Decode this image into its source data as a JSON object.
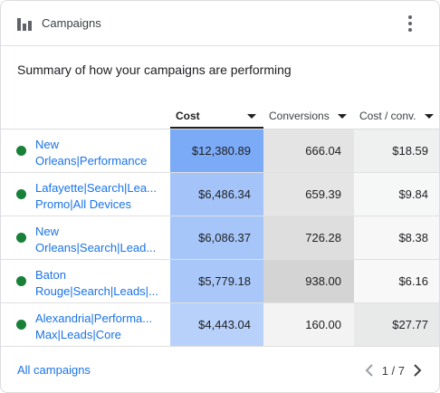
{
  "header": {
    "title": "Campaigns",
    "chart_icon": "bar-chart-icon",
    "menu_icon": "more-vert-icon"
  },
  "subtitle": "Summary of how your campaigns are performing",
  "columns": [
    {
      "label": "Cost",
      "sorted": true
    },
    {
      "label": "Conversions",
      "sorted": false
    },
    {
      "label": "Cost / conv.",
      "sorted": false
    }
  ],
  "rows": [
    {
      "name_line1": "New",
      "name_line2": "Orleans|Performance",
      "status": "enabled",
      "cost": "$12,380.89",
      "conversions": "666.04",
      "cost_per_conv": "$18.59",
      "cost_color": "#7baaf7",
      "conv_color": "#e4e4e4",
      "cpc_color": "#eff0f0"
    },
    {
      "name_line1": "Lafayette|Search|Lea...",
      "name_line2": "Promo|All Devices",
      "status": "enabled",
      "cost": "$6,486.34",
      "conversions": "659.39",
      "cost_per_conv": "$9.84",
      "cost_color": "#a4c4f9",
      "conv_color": "#e5e5e5",
      "cpc_color": "#f6f7f7"
    },
    {
      "name_line1": "New",
      "name_line2": "Orleans|Search|Lead...",
      "status": "enabled",
      "cost": "$6,086.37",
      "conversions": "726.28",
      "cost_per_conv": "$8.38",
      "cost_color": "#a6c6f9",
      "conv_color": "#dedede",
      "cpc_color": "#f7f7f7"
    },
    {
      "name_line1": "Baton",
      "name_line2": "Rouge|Search|Leads|...",
      "status": "enabled",
      "cost": "$5,779.18",
      "conversions": "938.00",
      "cost_per_conv": "$6.16",
      "cost_color": "#a9c8f9",
      "conv_color": "#d4d4d4",
      "cpc_color": "#f8f8f8"
    },
    {
      "name_line1": "Alexandria|Performa...",
      "name_line2": "Max|Leads|Core",
      "status": "enabled",
      "cost": "$4,443.04",
      "conversions": "160.00",
      "cost_per_conv": "$27.77",
      "cost_color": "#b7d1fb",
      "conv_color": "#f3f3f3",
      "cpc_color": "#e8e9e9"
    }
  ],
  "footer": {
    "link": "All campaigns",
    "page": "1 / 7"
  },
  "colors": {
    "link": "#1a73e8",
    "status_enabled": "#188038"
  }
}
